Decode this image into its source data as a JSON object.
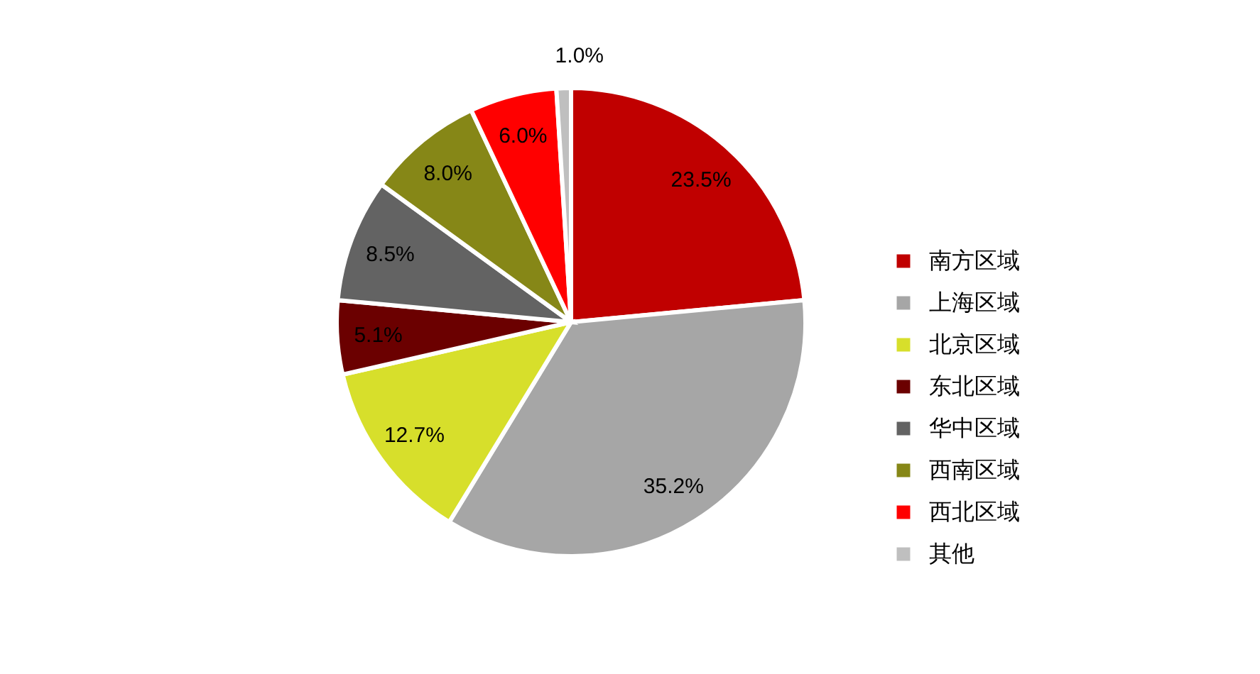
{
  "chart_data": {
    "type": "pie",
    "categories": [
      "南方区域",
      "上海区域",
      "北京区域",
      "东北区域",
      "华中区域",
      "西南区域",
      "西北区域",
      "其他"
    ],
    "values": [
      23.5,
      35.2,
      12.7,
      5.1,
      8.5,
      8.0,
      6.0,
      1.0
    ],
    "colors": [
      "#c00000",
      "#a6a6a6",
      "#d7df2b",
      "#6b0000",
      "#636363",
      "#868717",
      "#ff0000",
      "#bfbfbf"
    ],
    "value_labels": [
      "23.5%",
      "35.2%",
      "12.7%",
      "5.1%",
      "8.5%",
      "8.0%",
      "6.0%",
      "1.0%"
    ],
    "legend": "right"
  }
}
